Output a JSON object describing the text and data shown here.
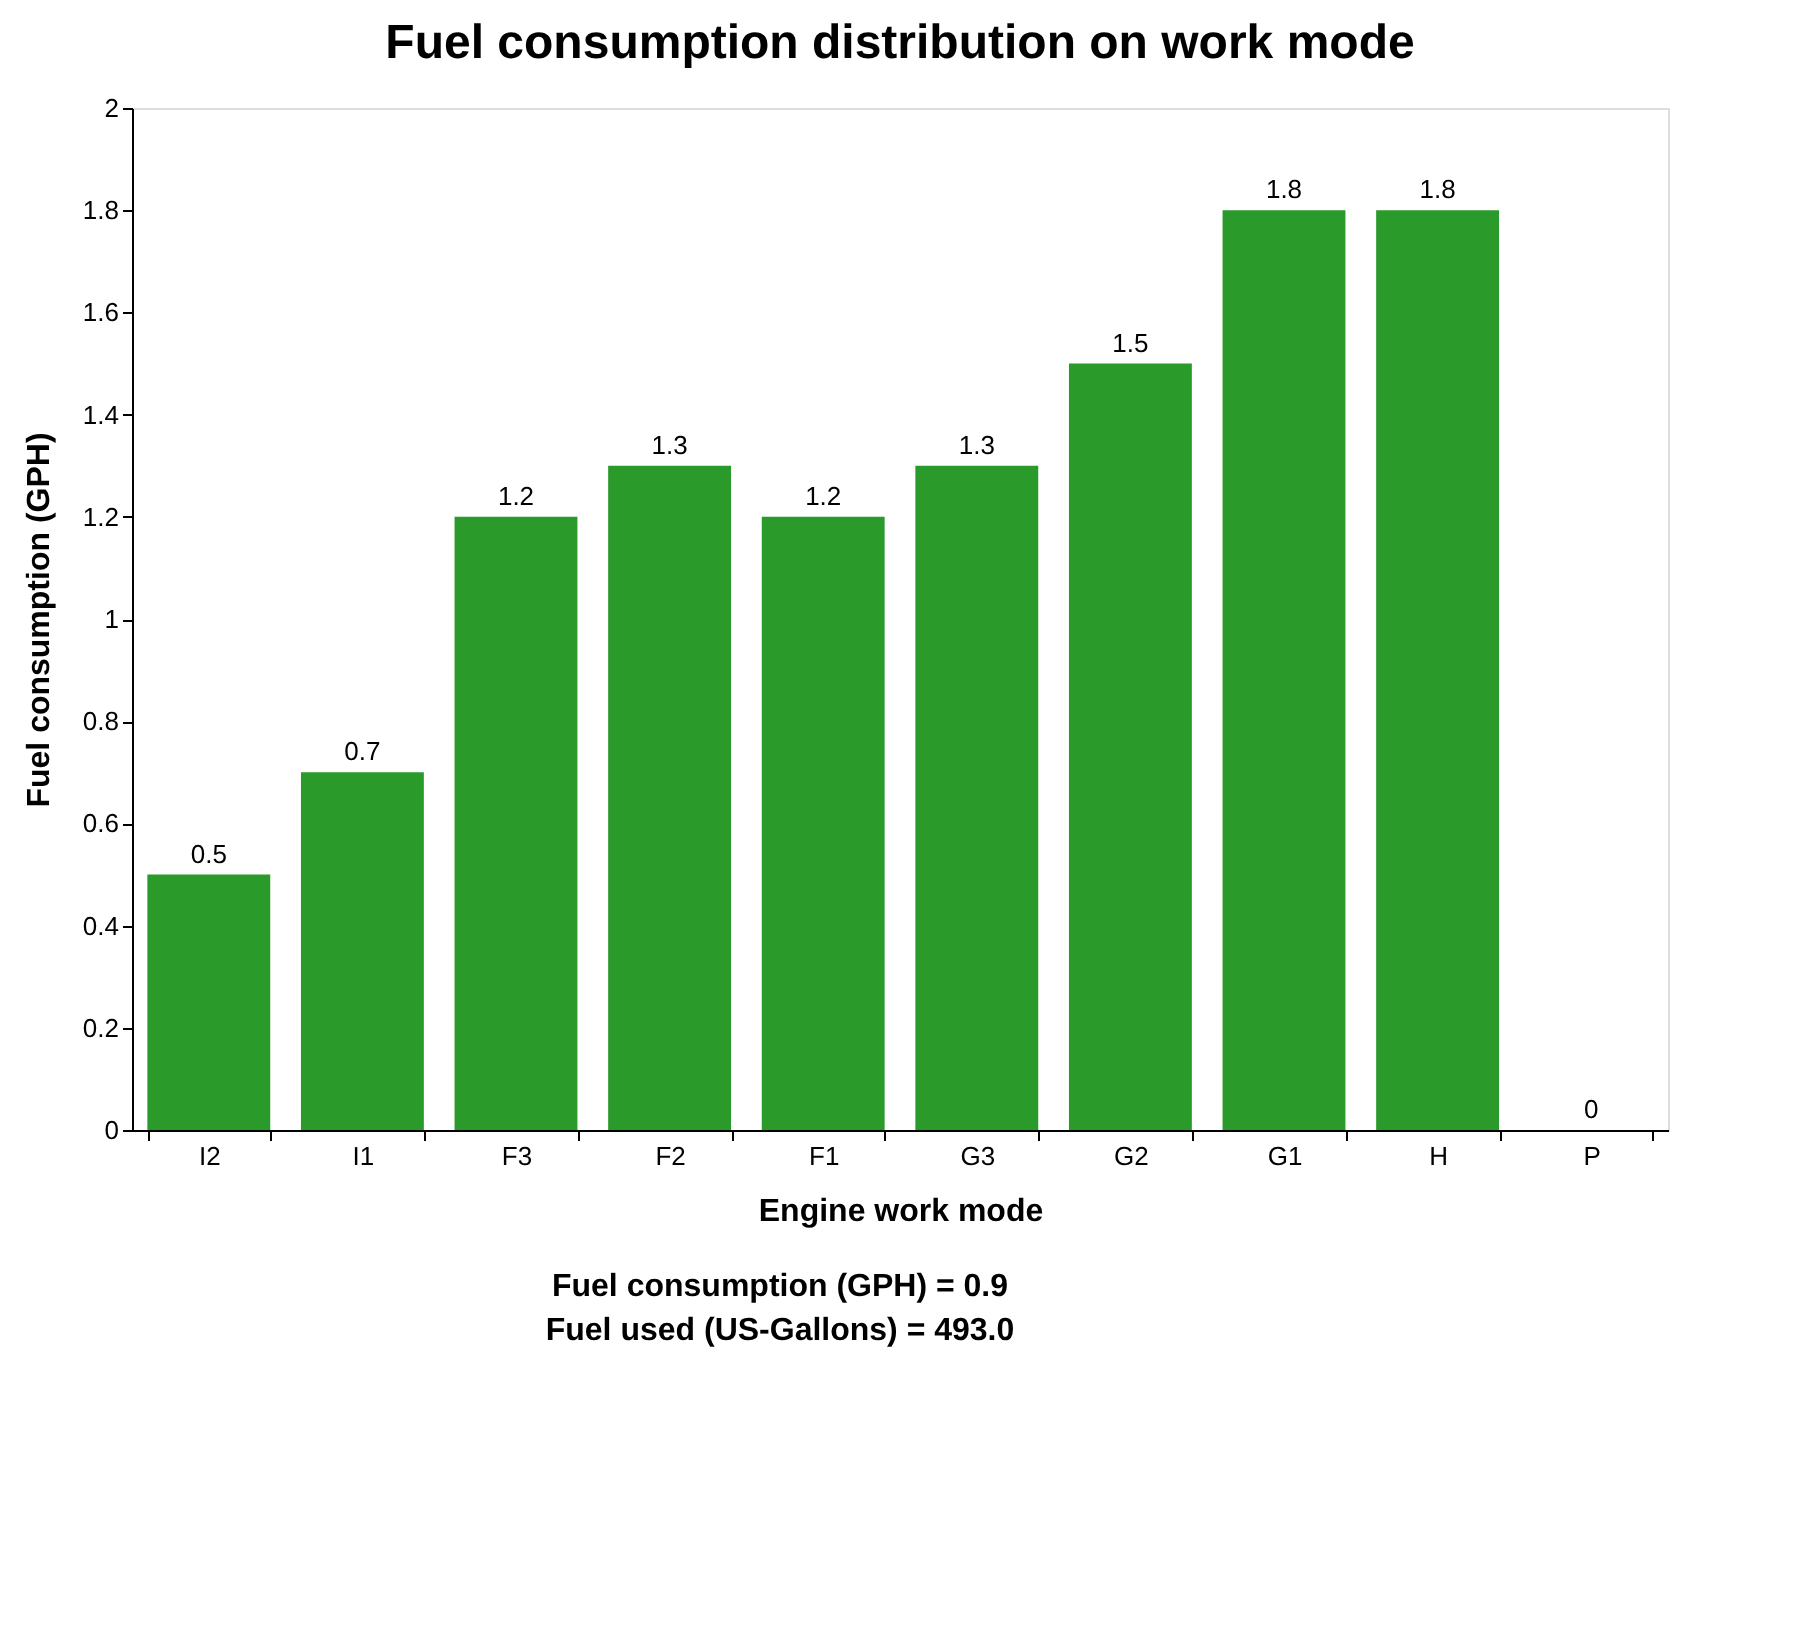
{
  "chart_data": {
    "type": "bar",
    "title": "Fuel consumption distribution on work mode",
    "xlabel": "Engine work mode",
    "ylabel": "Fuel consumption (GPH)",
    "categories": [
      "I2",
      "I1",
      "F3",
      "F2",
      "F1",
      "G3",
      "G2",
      "G1",
      "H",
      "P"
    ],
    "values": [
      0.5,
      0.7,
      1.2,
      1.3,
      1.2,
      1.3,
      1.5,
      1.8,
      1.8,
      0
    ],
    "color": "#2a9a2a",
    "ylim": [
      0,
      2
    ],
    "yticks": [
      0,
      0.2,
      0.4,
      0.6,
      0.8,
      1,
      1.2,
      1.4,
      1.6,
      1.8,
      2
    ],
    "grid": false,
    "data_labels": true,
    "annotations": [
      "Fuel consumption (GPH) = 0.9",
      "Fuel used (US-Gallons) = 493.0"
    ]
  }
}
